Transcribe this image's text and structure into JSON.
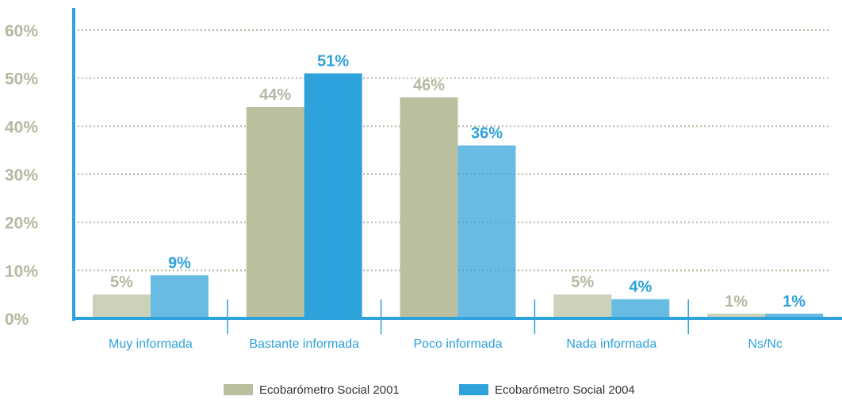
{
  "chart_data": {
    "type": "bar",
    "categories": [
      "Muy informada",
      "Bastante informada",
      "Poco informada",
      "Nada informada",
      "Ns/Nc"
    ],
    "series": [
      {
        "name": "Ecobarómetro Social 2001",
        "values": [
          5,
          44,
          46,
          5,
          1
        ],
        "labels": [
          "5%",
          "44%",
          "46%",
          "5%",
          "1%"
        ],
        "color": "#b9bf9f",
        "label_color": "#b5b9a1"
      },
      {
        "name": "Ecobarómetro Social 2004",
        "values": [
          9,
          51,
          36,
          4,
          1
        ],
        "labels": [
          "9%",
          "51%",
          "36%",
          "4%",
          "1%"
        ],
        "color": "#2ea2da",
        "label_color": "#2ea2da"
      }
    ],
    "y_ticks": [
      "0%",
      "10%",
      "20%",
      "30%",
      "40%",
      "50%",
      "60%"
    ],
    "ylim": [
      0,
      60
    ],
    "grid": "dotted",
    "legend_position": "bottom",
    "title": "",
    "xlabel": "",
    "ylabel": ""
  }
}
